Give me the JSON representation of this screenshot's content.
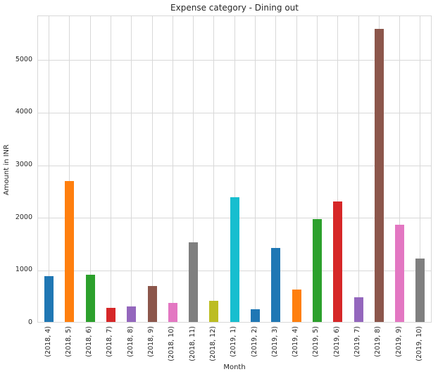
{
  "chart_data": {
    "type": "bar",
    "title": "Expense category - Dining out",
    "xlabel": "Month",
    "ylabel": "Amount in INR",
    "categories": [
      "(2018, 4)",
      "(2018, 5)",
      "(2018, 6)",
      "(2018, 7)",
      "(2018, 8)",
      "(2018, 9)",
      "(2018, 10)",
      "(2018, 11)",
      "(2018, 12)",
      "(2019, 1)",
      "(2019, 2)",
      "(2019, 3)",
      "(2019, 4)",
      "(2019, 5)",
      "(2019, 6)",
      "(2019, 7)",
      "(2019, 8)",
      "(2019, 9)",
      "(2019, 10)"
    ],
    "values": [
      875,
      2680,
      900,
      270,
      290,
      680,
      360,
      1520,
      400,
      2370,
      235,
      1400,
      615,
      1950,
      2290,
      465,
      5570,
      1850,
      1200
    ],
    "bar_colors": [
      "#1f77b4",
      "#ff7f0e",
      "#2ca02c",
      "#d62728",
      "#9467bd",
      "#8c564b",
      "#e377c2",
      "#7f7f7f",
      "#bcbd22",
      "#17becf",
      "#1f77b4",
      "#1f77b4",
      "#ff7f0e",
      "#2ca02c",
      "#d62728",
      "#9467bd",
      "#8c564b",
      "#e377c2",
      "#7f7f7f"
    ],
    "yticks": [
      0,
      1000,
      2000,
      3000,
      4000,
      5000
    ],
    "ylim": [
      0,
      5840
    ],
    "grid": true,
    "grid_color": "#d8d8d8",
    "background_color": "#ffffff",
    "text_color": "#262626",
    "legend": "none"
  }
}
